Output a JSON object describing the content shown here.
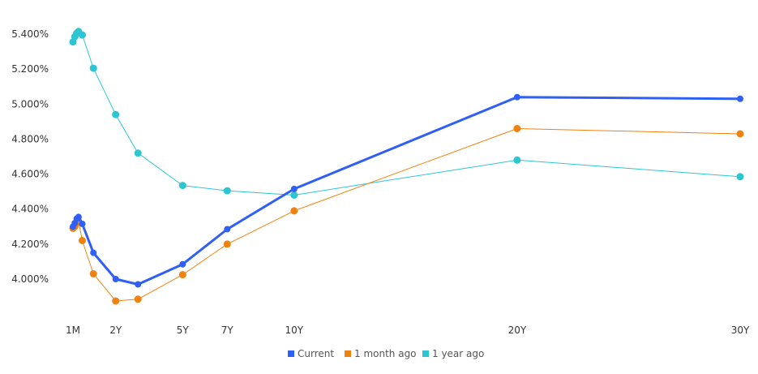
{
  "chart_data": {
    "type": "line",
    "x_ticks": [
      "1M",
      "2Y",
      "5Y",
      "7Y",
      "10Y",
      "20Y",
      "30Y"
    ],
    "y_ticks": [
      "4.000%",
      "4.200%",
      "4.400%",
      "4.600%",
      "4.800%",
      "5.000%",
      "5.200%",
      "5.400%"
    ],
    "x_unit": "years to maturity",
    "xlim": [
      0.0833,
      30
    ],
    "ylim": [
      3.78,
      5.48
    ],
    "grid": false,
    "legend_position": "bottom-center",
    "series": [
      {
        "name": "Current",
        "color": "#2f5ff5",
        "points": [
          {
            "x": 0.0833,
            "y": 4.3
          },
          {
            "x": 0.1667,
            "y": 4.32
          },
          {
            "x": 0.25,
            "y": 4.345
          },
          {
            "x": 0.3333,
            "y": 4.355
          },
          {
            "x": 0.5,
            "y": 4.315
          },
          {
            "x": 1,
            "y": 4.15
          },
          {
            "x": 2,
            "y": 4.0
          },
          {
            "x": 3,
            "y": 3.97
          },
          {
            "x": 5,
            "y": 4.085
          },
          {
            "x": 7,
            "y": 4.285
          },
          {
            "x": 10,
            "y": 4.515
          },
          {
            "x": 20,
            "y": 5.04
          },
          {
            "x": 30,
            "y": 5.03
          }
        ]
      },
      {
        "name": "1 month ago",
        "color": "#f0820f",
        "points": [
          {
            "x": 0.0833,
            "y": 4.29
          },
          {
            "x": 0.1667,
            "y": 4.3
          },
          {
            "x": 0.25,
            "y": 4.32
          },
          {
            "x": 0.3333,
            "y": 4.33
          },
          {
            "x": 0.5,
            "y": 4.22
          },
          {
            "x": 1,
            "y": 4.03
          },
          {
            "x": 2,
            "y": 3.875
          },
          {
            "x": 3,
            "y": 3.885
          },
          {
            "x": 5,
            "y": 4.025
          },
          {
            "x": 7,
            "y": 4.2
          },
          {
            "x": 10,
            "y": 4.39
          },
          {
            "x": 20,
            "y": 4.86
          },
          {
            "x": 30,
            "y": 4.83
          }
        ]
      },
      {
        "name": "1 year ago",
        "color": "#2cc6d3",
        "points": [
          {
            "x": 0.0833,
            "y": 5.355
          },
          {
            "x": 0.1667,
            "y": 5.385
          },
          {
            "x": 0.25,
            "y": 5.405
          },
          {
            "x": 0.3333,
            "y": 5.415
          },
          {
            "x": 0.5,
            "y": 5.395
          },
          {
            "x": 1,
            "y": 5.205
          },
          {
            "x": 2,
            "y": 4.94
          },
          {
            "x": 3,
            "y": 4.72
          },
          {
            "x": 5,
            "y": 4.535
          },
          {
            "x": 7,
            "y": 4.505
          },
          {
            "x": 10,
            "y": 4.48
          },
          {
            "x": 20,
            "y": 4.68
          },
          {
            "x": 30,
            "y": 4.585
          }
        ]
      }
    ]
  }
}
